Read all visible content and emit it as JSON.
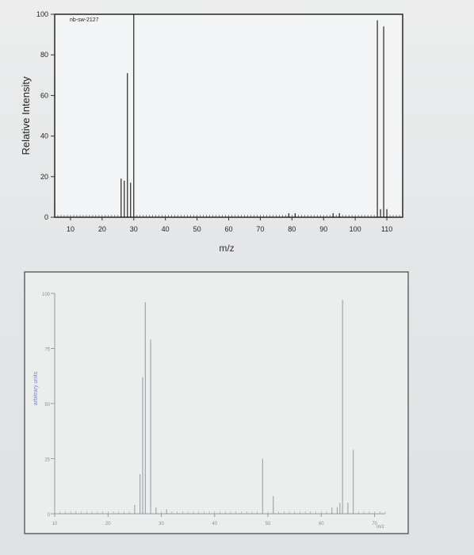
{
  "chart_data": [
    {
      "type": "bar",
      "title": "",
      "stamp": "nb-sw-2127",
      "xlabel": "m/z",
      "ylabel": "Relative Intensity",
      "xlim": [
        5,
        115
      ],
      "ylim": [
        0,
        100
      ],
      "x_ticks": [
        10,
        20,
        30,
        40,
        50,
        60,
        70,
        80,
        90,
        100,
        110
      ],
      "y_ticks": [
        0,
        20,
        40,
        60,
        80,
        100
      ],
      "grid": false,
      "peaks": [
        {
          "x": 26,
          "y": 19
        },
        {
          "x": 27,
          "y": 18
        },
        {
          "x": 28,
          "y": 71
        },
        {
          "x": 29,
          "y": 17
        },
        {
          "x": 30,
          "y": 100
        },
        {
          "x": 79,
          "y": 2
        },
        {
          "x": 81,
          "y": 2
        },
        {
          "x": 93,
          "y": 2
        },
        {
          "x": 95,
          "y": 2
        },
        {
          "x": 107,
          "y": 97
        },
        {
          "x": 108,
          "y": 4
        },
        {
          "x": 109,
          "y": 94
        },
        {
          "x": 110,
          "y": 4
        }
      ]
    },
    {
      "type": "bar",
      "title": "",
      "xlabel": "m/z",
      "ylabel": "arbitrary units",
      "xlim": [
        10,
        72
      ],
      "ylim": [
        0,
        100
      ],
      "x_ticks": [
        10,
        20,
        30,
        40,
        50,
        60,
        70
      ],
      "y_ticks": [
        0,
        25,
        50,
        75,
        100
      ],
      "grid": false,
      "peaks": [
        {
          "x": 25,
          "y": 4
        },
        {
          "x": 26,
          "y": 18
        },
        {
          "x": 26.5,
          "y": 62
        },
        {
          "x": 27,
          "y": 96
        },
        {
          "x": 28,
          "y": 79
        },
        {
          "x": 29,
          "y": 3
        },
        {
          "x": 31,
          "y": 2
        },
        {
          "x": 49,
          "y": 25
        },
        {
          "x": 51,
          "y": 8
        },
        {
          "x": 62,
          "y": 3
        },
        {
          "x": 63,
          "y": 3
        },
        {
          "x": 63.5,
          "y": 5
        },
        {
          "x": 64,
          "y": 97
        },
        {
          "x": 65,
          "y": 5
        },
        {
          "x": 66,
          "y": 29
        }
      ]
    }
  ]
}
